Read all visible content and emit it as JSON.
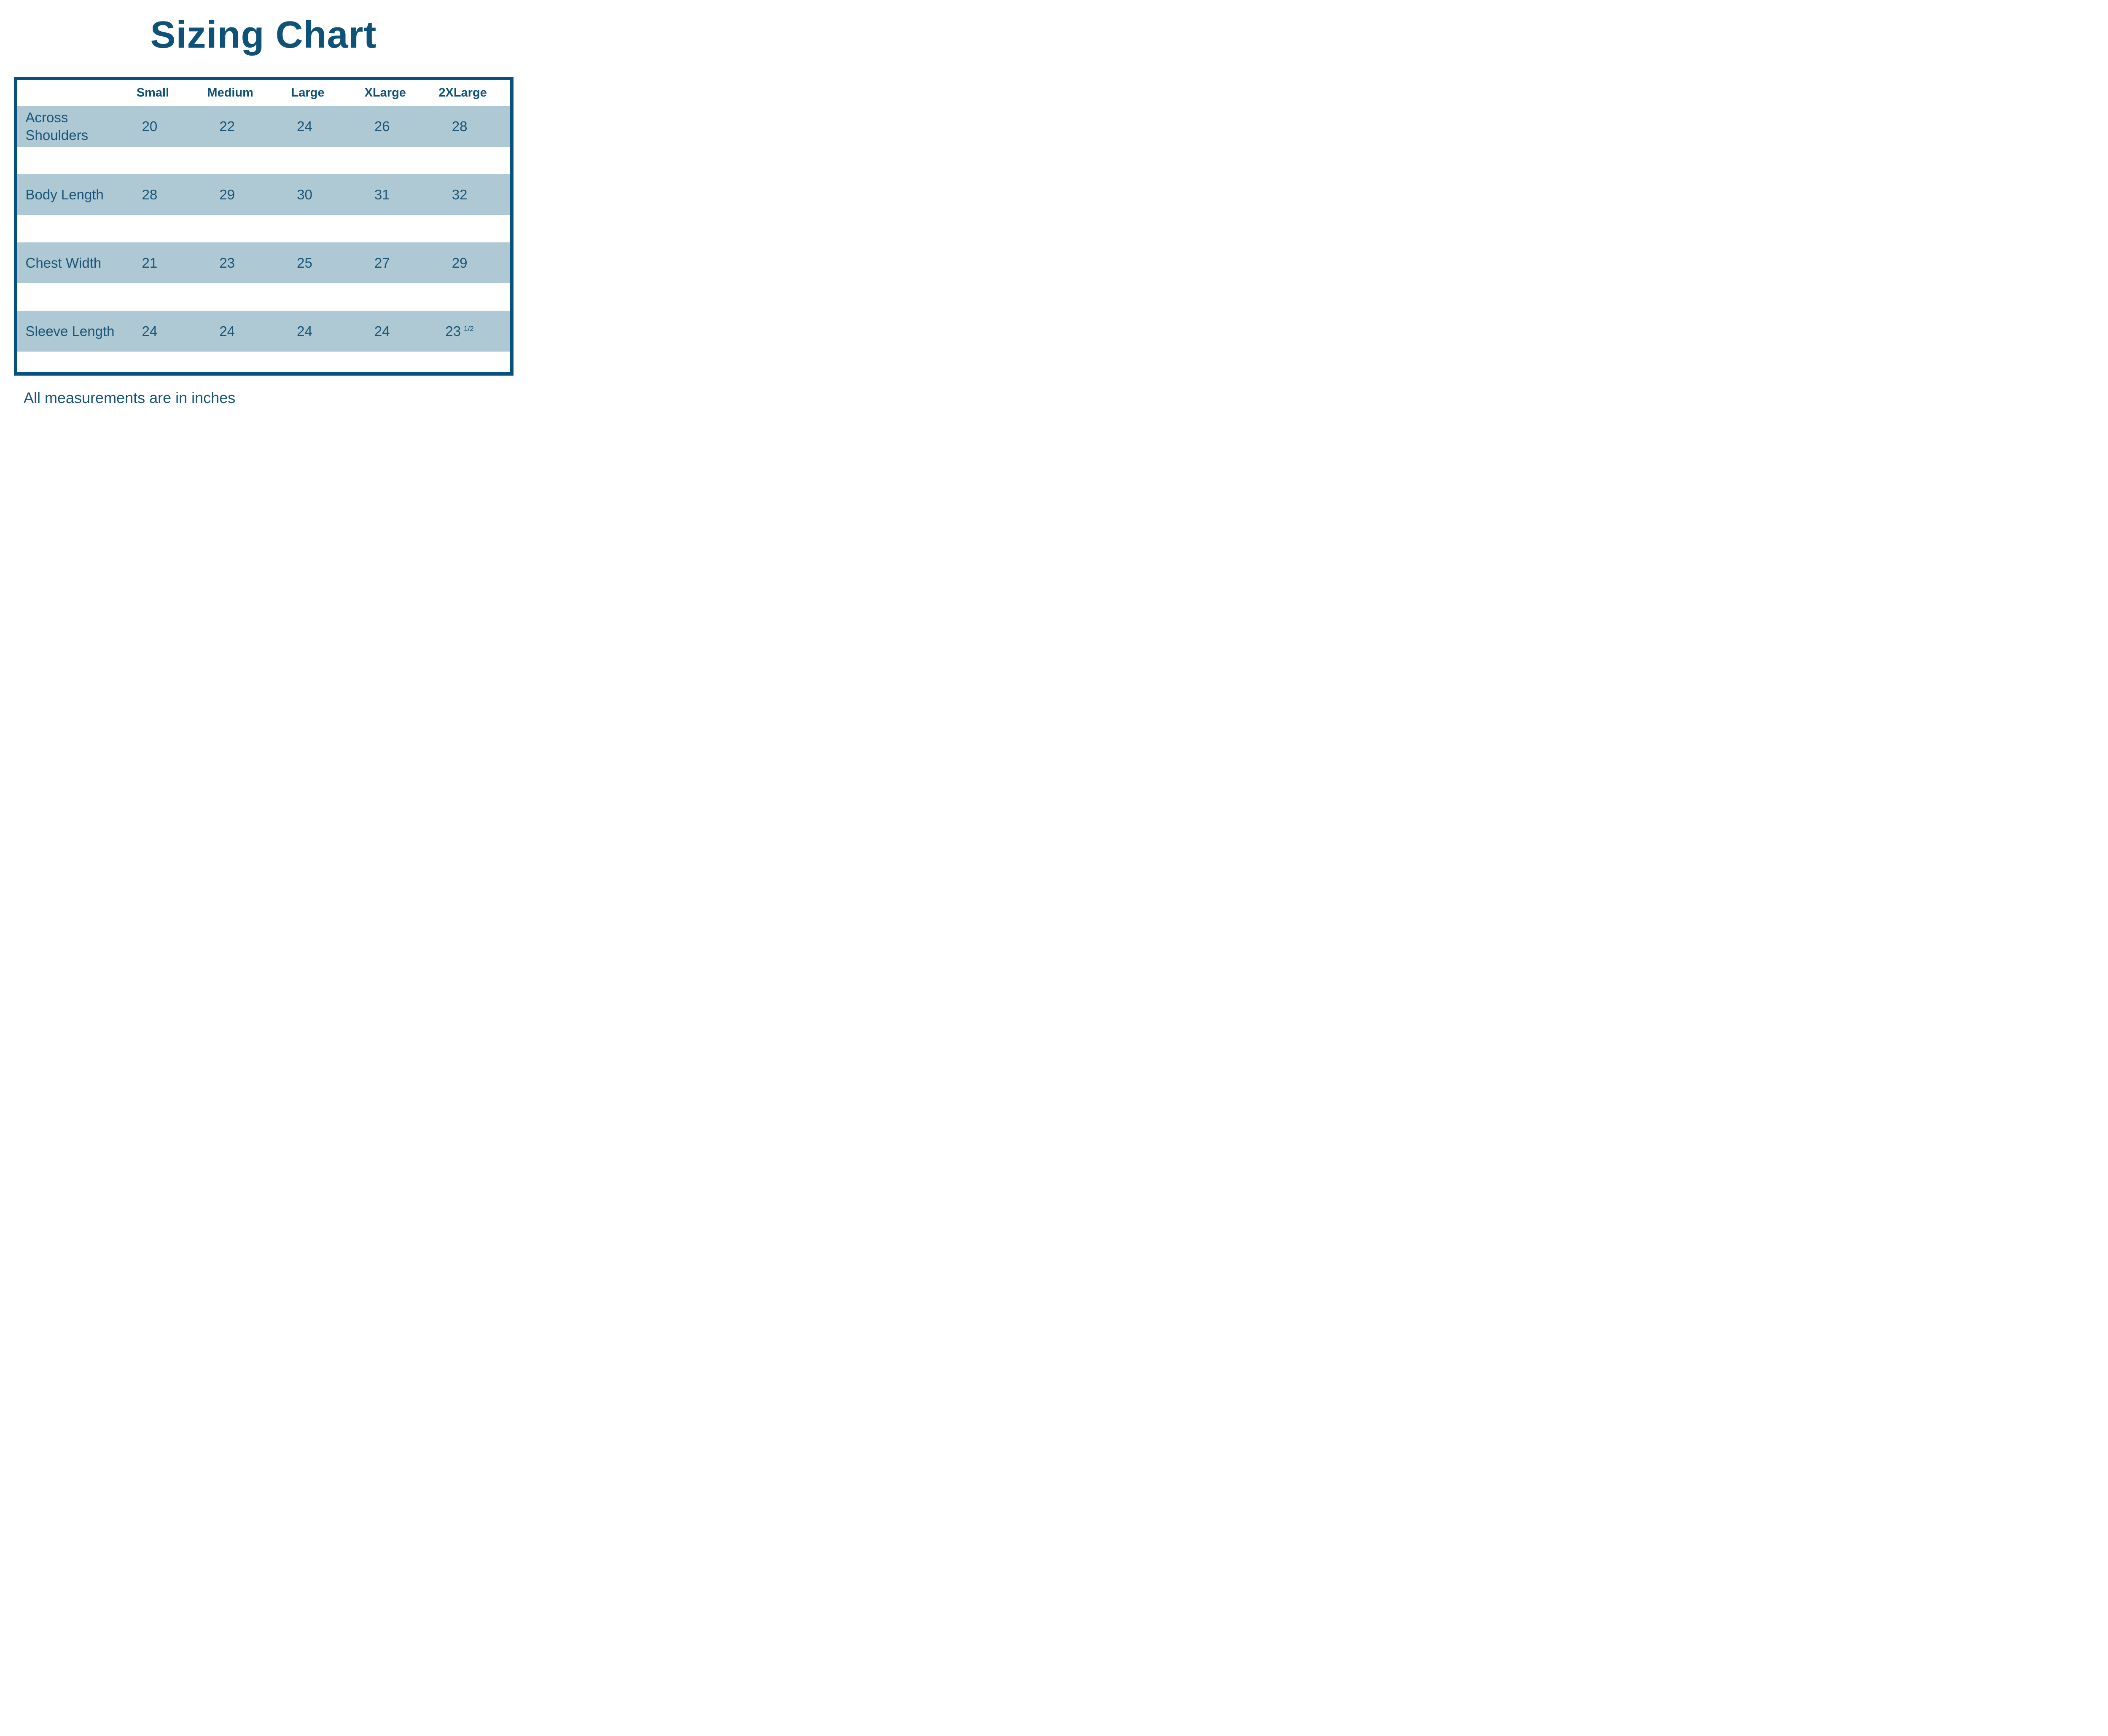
{
  "title": "Sizing Chart",
  "footer": "All measurements are in inches",
  "colors": {
    "accent_dark_blue": "#05537c",
    "band_light_blue": "#aec8d4",
    "text_blue": "#1a5679",
    "background": "#ffffff"
  },
  "table": {
    "columns": [
      "Small",
      "Medium",
      "Large",
      "XLarge",
      "2XLarge"
    ],
    "rows": [
      {
        "label": "Across Shoulders",
        "cells": [
          {
            "v": "20"
          },
          {
            "v": "22"
          },
          {
            "v": "24"
          },
          {
            "v": "26"
          },
          {
            "v": "28"
          }
        ]
      },
      {
        "label": "Body Length",
        "cells": [
          {
            "v": "28"
          },
          {
            "v": "29"
          },
          {
            "v": "30"
          },
          {
            "v": "31"
          },
          {
            "v": "32"
          }
        ]
      },
      {
        "label": "Chest Width",
        "cells": [
          {
            "v": "21"
          },
          {
            "v": "23"
          },
          {
            "v": "25"
          },
          {
            "v": "27"
          },
          {
            "v": "29"
          }
        ]
      },
      {
        "label": "Sleeve Length",
        "cells": [
          {
            "v": "24"
          },
          {
            "v": "24"
          },
          {
            "v": "24"
          },
          {
            "v": "24"
          },
          {
            "v": "23",
            "sup": "1/2"
          }
        ]
      }
    ]
  },
  "chart_data": {
    "type": "table",
    "title": "Sizing Chart",
    "columns": [
      "",
      "Small",
      "Medium",
      "Large",
      "XLarge",
      "2XLarge"
    ],
    "rows": [
      [
        "Across Shoulders",
        20,
        22,
        24,
        26,
        28
      ],
      [
        "Body Length",
        28,
        29,
        30,
        31,
        32
      ],
      [
        "Chest Width",
        21,
        23,
        25,
        27,
        29
      ],
      [
        "Sleeve Length",
        24,
        24,
        24,
        24,
        23.5
      ]
    ],
    "note": "All measurements are in inches",
    "layout_hints": {
      "banded_rows": true,
      "band_color": "#aec8d4",
      "outer_border_color": "#05537c",
      "header_position": "top"
    }
  }
}
